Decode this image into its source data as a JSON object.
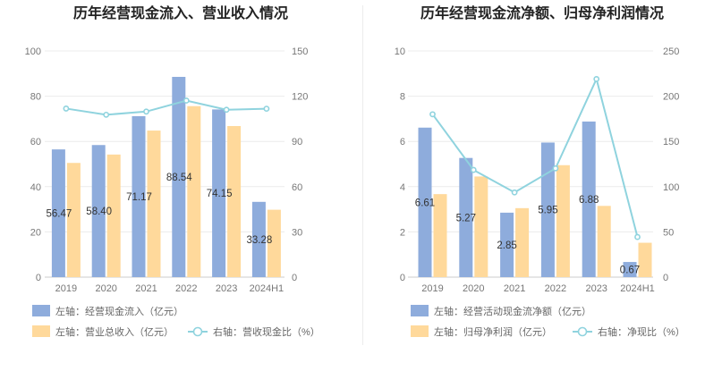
{
  "colors": {
    "bar_primary": "#8eacdc",
    "bar_secondary": "#ffd99b",
    "line": "#8fd3de",
    "grid": "#ececec",
    "axis_text": "#777777",
    "title_text": "#222222"
  },
  "chart_data": [
    {
      "type": "bar",
      "title": "历年经营现金流入、营业收入情况",
      "categories": [
        "2019",
        "2020",
        "2021",
        "2022",
        "2023",
        "2024H1"
      ],
      "left_axis": {
        "ticks": [
          "0",
          "20",
          "40",
          "60",
          "80",
          "100"
        ],
        "ylim": [
          0,
          100
        ]
      },
      "right_axis": {
        "ticks": [
          "0",
          "30",
          "60",
          "90",
          "120",
          "150"
        ],
        "ylim": [
          0,
          150
        ]
      },
      "series": [
        {
          "name": "左轴：经营现金流入（亿元）",
          "kind": "bar",
          "axis": "left",
          "values": [
            56.47,
            58.4,
            71.17,
            88.54,
            74.15,
            33.28
          ],
          "labels": [
            "56.47",
            "58.40",
            "71.17",
            "88.54",
            "74.15",
            "33.28"
          ]
        },
        {
          "name": "左轴：营业总收入（亿元）",
          "kind": "bar",
          "axis": "left",
          "values": [
            50.5,
            54.2,
            64.8,
            75.6,
            66.8,
            29.8
          ]
        },
        {
          "name": "右轴：营收现金比（%）",
          "kind": "line",
          "axis": "right",
          "values": [
            111.8,
            107.7,
            109.8,
            117.1,
            111.0,
            111.7
          ]
        }
      ]
    },
    {
      "type": "bar",
      "title": "历年经营现金流净额、归母净利润情况",
      "categories": [
        "2019",
        "2020",
        "2021",
        "2022",
        "2023",
        "2024H1"
      ],
      "left_axis": {
        "ticks": [
          "0",
          "2",
          "4",
          "6",
          "8",
          "10"
        ],
        "ylim": [
          0,
          10
        ]
      },
      "right_axis": {
        "ticks": [
          "0",
          "50",
          "100",
          "150",
          "200",
          "250"
        ],
        "ylim": [
          0,
          250
        ]
      },
      "series": [
        {
          "name": "左轴：经营活动现金流净额（亿元）",
          "kind": "bar",
          "axis": "left",
          "values": [
            6.61,
            5.27,
            2.85,
            5.95,
            6.88,
            0.67
          ],
          "labels": [
            "6.61",
            "5.27",
            "2.85",
            "5.95",
            "6.88",
            "0.67"
          ]
        },
        {
          "name": "左轴：归母净利润（亿元）",
          "kind": "bar",
          "axis": "left",
          "values": [
            3.67,
            4.45,
            3.05,
            4.95,
            3.15,
            1.52
          ]
        },
        {
          "name": "右轴：净现比（%）",
          "kind": "line",
          "axis": "right",
          "values": [
            180,
            118.5,
            93.6,
            120.2,
            219,
            44.4
          ]
        }
      ]
    }
  ]
}
